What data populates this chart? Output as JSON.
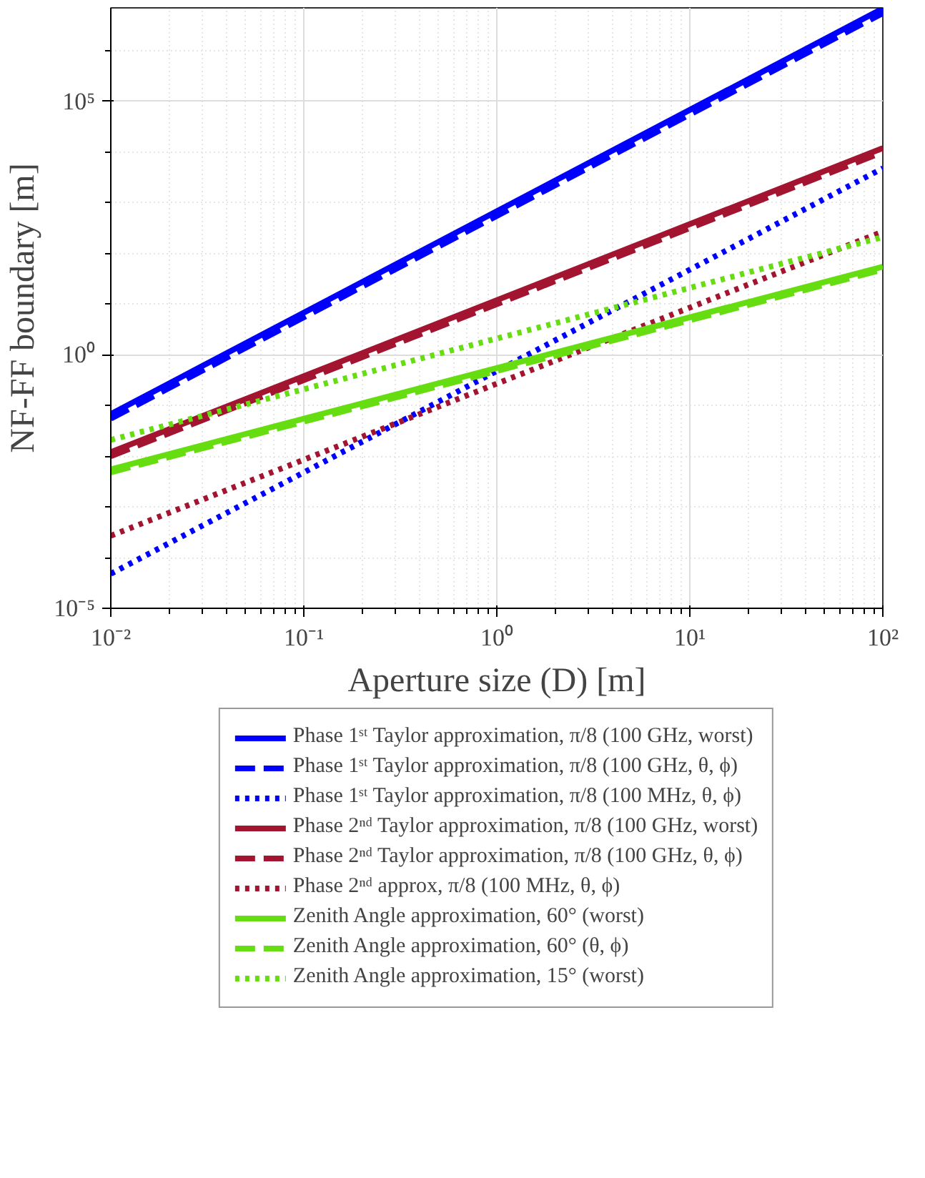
{
  "chart_data": {
    "type": "line",
    "xlabel": "Aperture size (D) [m]",
    "ylabel": "NF-FF boundary [m]",
    "log": "xy",
    "xlim": [
      0.01,
      100
    ],
    "ylim": [
      1e-05,
      7000000
    ],
    "xticks": [
      {
        "value": 0.01,
        "label": "10⁻²"
      },
      {
        "value": 0.1,
        "label": "10⁻¹"
      },
      {
        "value": 1,
        "label": "10⁰"
      },
      {
        "value": 10,
        "label": "10¹"
      },
      {
        "value": 100,
        "label": "10²"
      }
    ],
    "yticks": [
      {
        "value": 1e-05,
        "label": "10⁻⁵"
      },
      {
        "value": 1,
        "label": "10⁰"
      },
      {
        "value": 100000,
        "label": "10⁵"
      }
    ],
    "grid": true,
    "legend": "bottom",
    "marker": "none",
    "x": [
      0.01,
      100
    ],
    "series": [
      {
        "name": "Phase 1ˢᵗ Taylor approximation, π/8 (100 GHz, worst)",
        "color": "#0000ff",
        "line_style": "solid",
        "values": [
          0.068,
          6800000
        ]
      },
      {
        "name": "Phase 1ˢᵗ Taylor approximation, π/8 (100 GHz, θ, ϕ)",
        "color": "#0000ff",
        "line_style": "dashed",
        "values": [
          0.055,
          5500000
        ]
      },
      {
        "name": "Phase 1ˢᵗ Taylor approximation, π/8 (100 MHz, θ, ϕ)",
        "color": "#0000ff",
        "line_style": "dotted",
        "values": [
          4.8e-05,
          4800
        ]
      },
      {
        "name": "Phase 2ⁿᵈ Taylor approximation, π/8 (100 GHz, worst)",
        "color": "#a2142f",
        "line_style": "solid",
        "values": [
          0.012,
          12000
        ]
      },
      {
        "name": "Phase 2ⁿᵈ Taylor approximation, π/8 (100 GHz, θ, ϕ)",
        "color": "#a2142f",
        "line_style": "dashed",
        "values": [
          0.01,
          10000
        ]
      },
      {
        "name": "Phase 2ⁿᵈ approx, π/8 (100 MHz, θ, ϕ)",
        "color": "#a2142f",
        "line_style": "dotted",
        "values": [
          0.00027,
          270
        ]
      },
      {
        "name": "Zenith Angle approximation, 60° (worst)",
        "color": "#66dd11",
        "line_style": "solid",
        "values": [
          0.0055,
          55
        ]
      },
      {
        "name": "Zenith Angle approximation, 60° (θ, ϕ)",
        "color": "#66dd11",
        "line_style": "dashed",
        "values": [
          0.0048,
          48
        ]
      },
      {
        "name": "Zenith Angle approximation, 15° (worst)",
        "color": "#66dd11",
        "line_style": "dotted",
        "values": [
          0.021,
          210
        ]
      }
    ]
  }
}
